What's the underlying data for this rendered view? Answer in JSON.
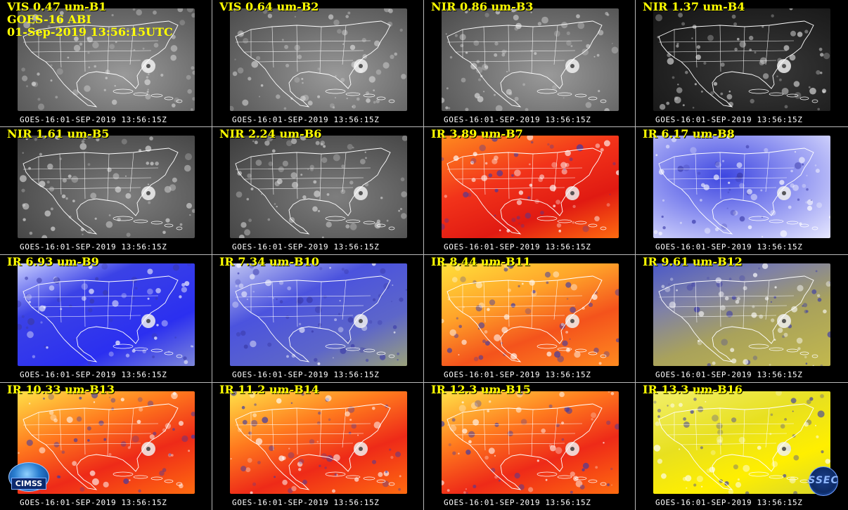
{
  "header": {
    "line2": "GOES-16 ABI",
    "line3": "01-Sep-2019 13:56:15UTC"
  },
  "panels": [
    {
      "label": "VIS 0.47 um-B1",
      "stamp": "GOES-16:01-SEP-2019  13:56:15Z",
      "scheme": "gray"
    },
    {
      "label": "VIS 0.64 um-B2",
      "stamp": "GOES-16:01-SEP-2019  13:56:15Z",
      "scheme": "gray"
    },
    {
      "label": "NIR 0.86 um-B3",
      "stamp": "GOES-16:01-SEP-2019  13:56:15Z",
      "scheme": "gray"
    },
    {
      "label": "NIR 1.37 um-B4",
      "stamp": "GOES-16:01-SEP-2019  13:56:15Z",
      "scheme": "dark"
    },
    {
      "label": "NIR 1.61 um-B5",
      "stamp": "GOES-16:01-SEP-2019  13:56:15Z",
      "scheme": "gray2"
    },
    {
      "label": "NIR 2.24 um-B6",
      "stamp": "GOES-16:01-SEP-2019  13:56:15Z",
      "scheme": "gray2"
    },
    {
      "label": "IR 3.89 um-B7",
      "stamp": "GOES-16:01-SEP-2019  13:56:15Z",
      "scheme": "red"
    },
    {
      "label": "IR 6.17 um-B8",
      "stamp": "GOES-16:01-SEP-2019  13:56:15Z",
      "scheme": "wv"
    },
    {
      "label": "IR 6.93 um-B9",
      "stamp": "GOES-16:01-SEP-2019  13:56:15Z",
      "scheme": "blue"
    },
    {
      "label": "IR 7.34 um-B10",
      "stamp": "GOES-16:01-SEP-2019  13:56:15Z",
      "scheme": "blue2"
    },
    {
      "label": "IR 8.44 um-B11",
      "stamp": "GOES-16:01-SEP-2019  13:56:15Z",
      "scheme": "orange"
    },
    {
      "label": "IR 9.61 um-B12",
      "stamp": "GOES-16:01-SEP-2019  13:56:15Z",
      "scheme": "olive"
    },
    {
      "label": "IR 10.33 um-B13",
      "stamp": "GOES-16:01-SEP-2019  13:56:15Z",
      "scheme": "red2"
    },
    {
      "label": "IR 11.2 um-B14",
      "stamp": "GOES-16:01-SEP-2019  13:56:15Z",
      "scheme": "red2"
    },
    {
      "label": "IR 12.3 um-B15",
      "stamp": "GOES-16:01-SEP-2019  13:56:15Z",
      "scheme": "red2"
    },
    {
      "label": "IR 13.3 um-B16",
      "stamp": "GOES-16:01-SEP-2019  13:56:15Z",
      "scheme": "yellow"
    }
  ],
  "logos": {
    "left": "CIMSS",
    "right": "SSEC"
  },
  "colors": {
    "label_text": "#ffff00",
    "stamp_text": "#ffffff",
    "background": "#000000",
    "map_lines": "#ffffff"
  }
}
